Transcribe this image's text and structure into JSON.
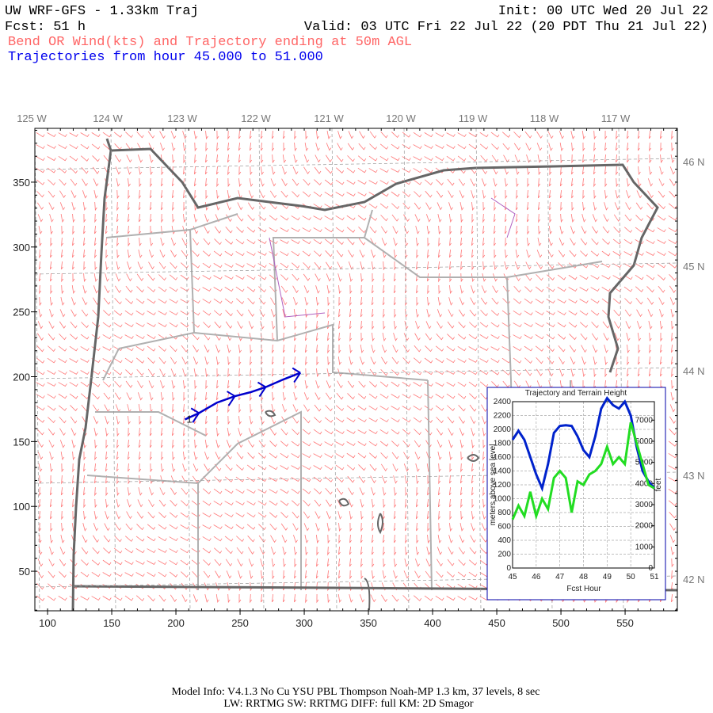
{
  "header": {
    "line1_left": "UW WRF-GFS - 1.33km Traj",
    "line1_right": "Init: 00 UTC Wed 20 Jul 22",
    "line2_left": "Fcst:   51 h",
    "line2_right": "Valid: 03 UTC Fri 22 Jul 22 (20 PDT Thu 21 Jul 22)",
    "line3": "Bend OR Wind(kts) and Trajectory ending at 50m AGL",
    "line4": "Trajectories from hour  45.000 to  51.000"
  },
  "chart_data": [
    {
      "type": "map",
      "xlim": [
        90.1,
        590.7
      ],
      "ylim": [
        19.5,
        391.5
      ],
      "xticks": [
        100,
        150,
        200,
        250,
        300,
        350,
        400,
        450,
        500,
        550
      ],
      "yticks": [
        50,
        100,
        150,
        200,
        250,
        300,
        350
      ],
      "lon_labels": [
        "125 W",
        "124 W",
        "123 W",
        "122 W",
        "121 W",
        "120 W",
        "119 W",
        "118 W",
        "117 W"
      ],
      "lat_labels": [
        "46 N",
        "45 N",
        "44 N",
        "43 N",
        "42 N"
      ],
      "trajectory": {
        "name": "1",
        "color": "#0000cc",
        "x": [
          207,
          218,
          232,
          246,
          258,
          270,
          284,
          297
        ],
        "y": [
          167,
          172,
          180,
          185,
          188,
          192,
          198,
          203
        ]
      }
    },
    {
      "type": "line",
      "title": "Trajectory and Terrain Height",
      "x_label": "Fcst Hour",
      "y_label": "meters above sea level",
      "y2_label": "feet",
      "x": [
        45,
        45.25,
        45.5,
        45.75,
        46,
        46.25,
        46.5,
        46.75,
        47,
        47.25,
        47.5,
        47.75,
        48,
        48.25,
        48.5,
        48.75,
        49,
        49.25,
        49.5,
        49.75,
        50,
        50.25,
        50.5,
        50.75,
        51
      ],
      "xlim": [
        45,
        51
      ],
      "xticks": [
        45,
        46,
        47,
        48,
        49,
        50,
        51
      ],
      "ylim": [
        0,
        2400
      ],
      "yticks": [
        0,
        200,
        400,
        600,
        800,
        1000,
        1200,
        1400,
        1600,
        1800,
        2000,
        2200,
        2400
      ],
      "y2lim": [
        0,
        7874
      ],
      "y2ticks": [
        0,
        1000,
        2000,
        3000,
        4000,
        5000,
        6000,
        7000
      ],
      "grid": true,
      "series": [
        {
          "color": "#0022cc",
          "values": [
            1850,
            1980,
            1850,
            1600,
            1350,
            1150,
            1500,
            1950,
            2050,
            2060,
            2050,
            1900,
            1700,
            1600,
            1900,
            2300,
            2450,
            2350,
            2300,
            2400,
            2200,
            1750,
            1400,
            1250,
            1150
          ]
        },
        {
          "color": "#22dd22",
          "values": [
            700,
            900,
            750,
            1100,
            750,
            1000,
            850,
            1300,
            1400,
            1300,
            800,
            1250,
            1200,
            1350,
            1400,
            1500,
            1750,
            1500,
            1600,
            1500,
            2100,
            1800,
            1500,
            1200,
            1150
          ]
        }
      ]
    }
  ],
  "footer": {
    "line1": "Model Info: V4.1.3    No Cu    YSU PBL   Thompson     Noah-MP    1.3 km,  37 levels,     8 sec",
    "line2": "LW: RRTMG SW: RRTMG    DIFF: full    KM: 2D Smagor"
  }
}
